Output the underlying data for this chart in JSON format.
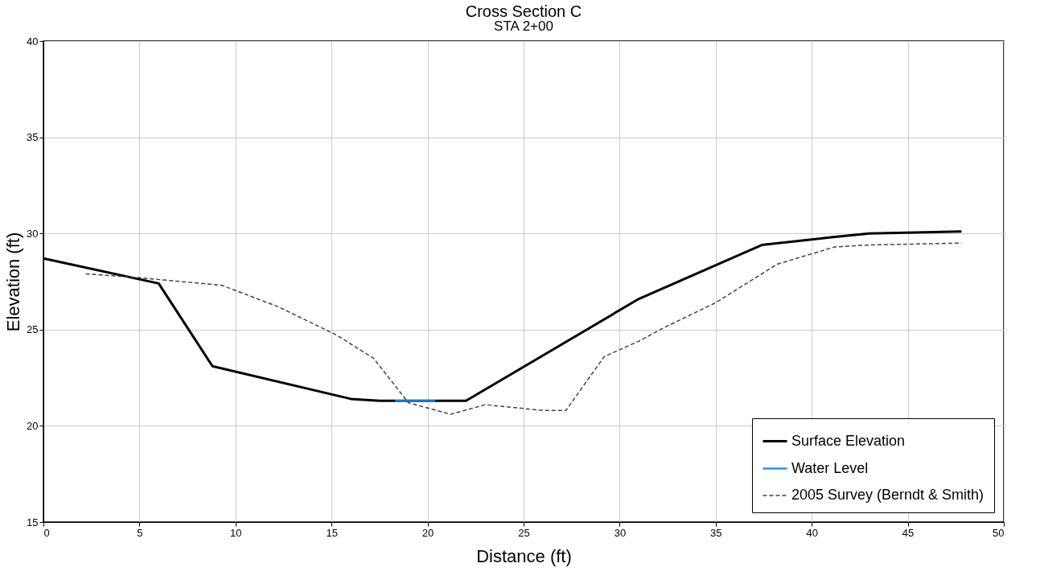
{
  "chart_data": {
    "type": "line",
    "title": "Cross Section C",
    "subtitle": "STA 2+00",
    "xlabel": "Distance (ft)",
    "ylabel": "Elevation (ft)",
    "xlim": [
      0,
      50
    ],
    "xticks": [
      0,
      5,
      10,
      15,
      20,
      25,
      30,
      35,
      40,
      45,
      50
    ],
    "ylim": [
      15,
      40
    ],
    "yticks": [
      15,
      20,
      25,
      30,
      35,
      40
    ],
    "grid": true,
    "legend": "bottom right",
    "marker": "none",
    "series": [
      {
        "name": "Surface Elevation",
        "color": "#000000",
        "line_style": "solid",
        "x": [
          0,
          6,
          8.8,
          16,
          17.5,
          22,
          31,
          37.4,
          41,
          43,
          47.8
        ],
        "values": [
          28.7,
          27.4,
          23.1,
          21.4,
          21.3,
          21.3,
          26.6,
          29.4,
          29.8,
          30.0,
          30.1
        ]
      },
      {
        "name": "Water Level",
        "color": "#1e88e5",
        "line_style": "solid",
        "x": [
          18.3,
          20.4
        ],
        "values": [
          21.3,
          21.3
        ]
      },
      {
        "name": "2005 Survey (Berndt & Smith)",
        "color": "#444444",
        "line_style": "dashed",
        "x": [
          2.2,
          5,
          9.3,
          12.2,
          15.3,
          17.2,
          19,
          21.2,
          23,
          26,
          27.2,
          29.2,
          31,
          32.3,
          35,
          38.2,
          41.2,
          43,
          47.8
        ],
        "values": [
          27.9,
          27.7,
          27.3,
          26.2,
          24.7,
          23.5,
          21.2,
          20.6,
          21.1,
          20.8,
          20.8,
          23.6,
          24.4,
          25.1,
          26.4,
          28.4,
          29.3,
          29.4,
          29.5
        ]
      }
    ]
  }
}
